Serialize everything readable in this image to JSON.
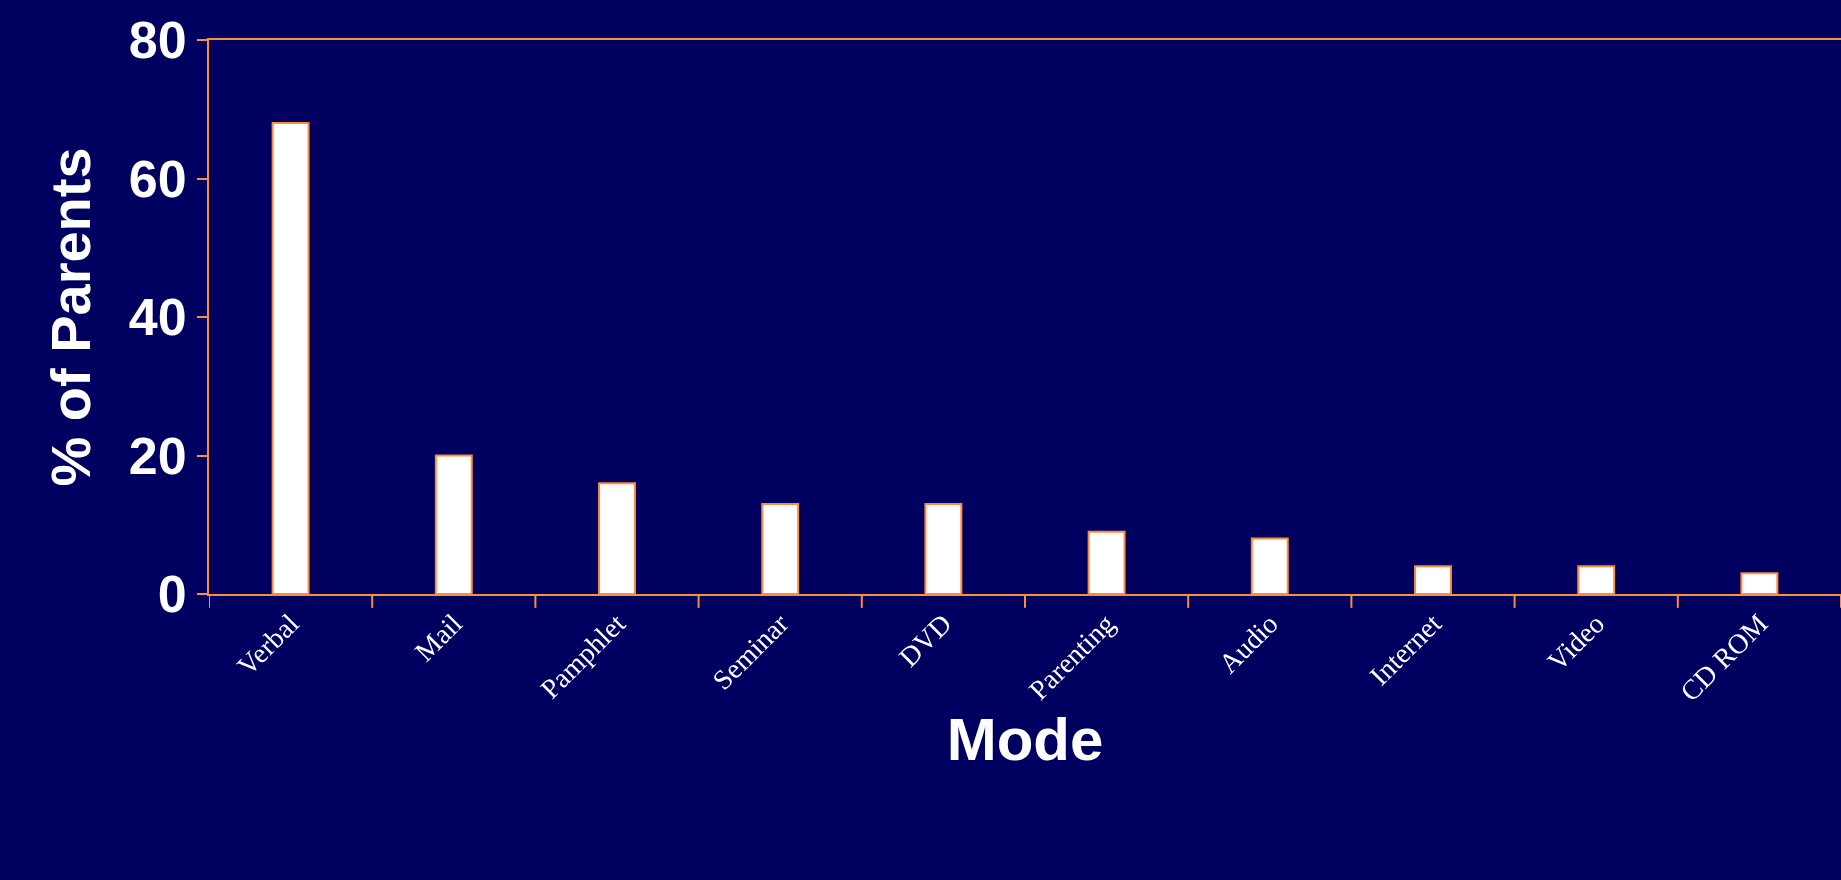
{
  "chart_data": {
    "type": "bar",
    "xlabel": "Mode",
    "ylabel": "% of Parents",
    "categories": [
      "Verbal",
      "Mail",
      "Pamphlet",
      "Seminar",
      "DVD",
      "Parenting",
      "Audio",
      "Internet",
      "Video",
      "CD ROM"
    ],
    "values": [
      68,
      20,
      16,
      13,
      13,
      9,
      8,
      4,
      4,
      3
    ],
    "color": "#ffffff",
    "ylim": [
      0,
      80
    ],
    "yticks": [
      0,
      20,
      40,
      60,
      80
    ],
    "grid": false,
    "legend": false
  }
}
